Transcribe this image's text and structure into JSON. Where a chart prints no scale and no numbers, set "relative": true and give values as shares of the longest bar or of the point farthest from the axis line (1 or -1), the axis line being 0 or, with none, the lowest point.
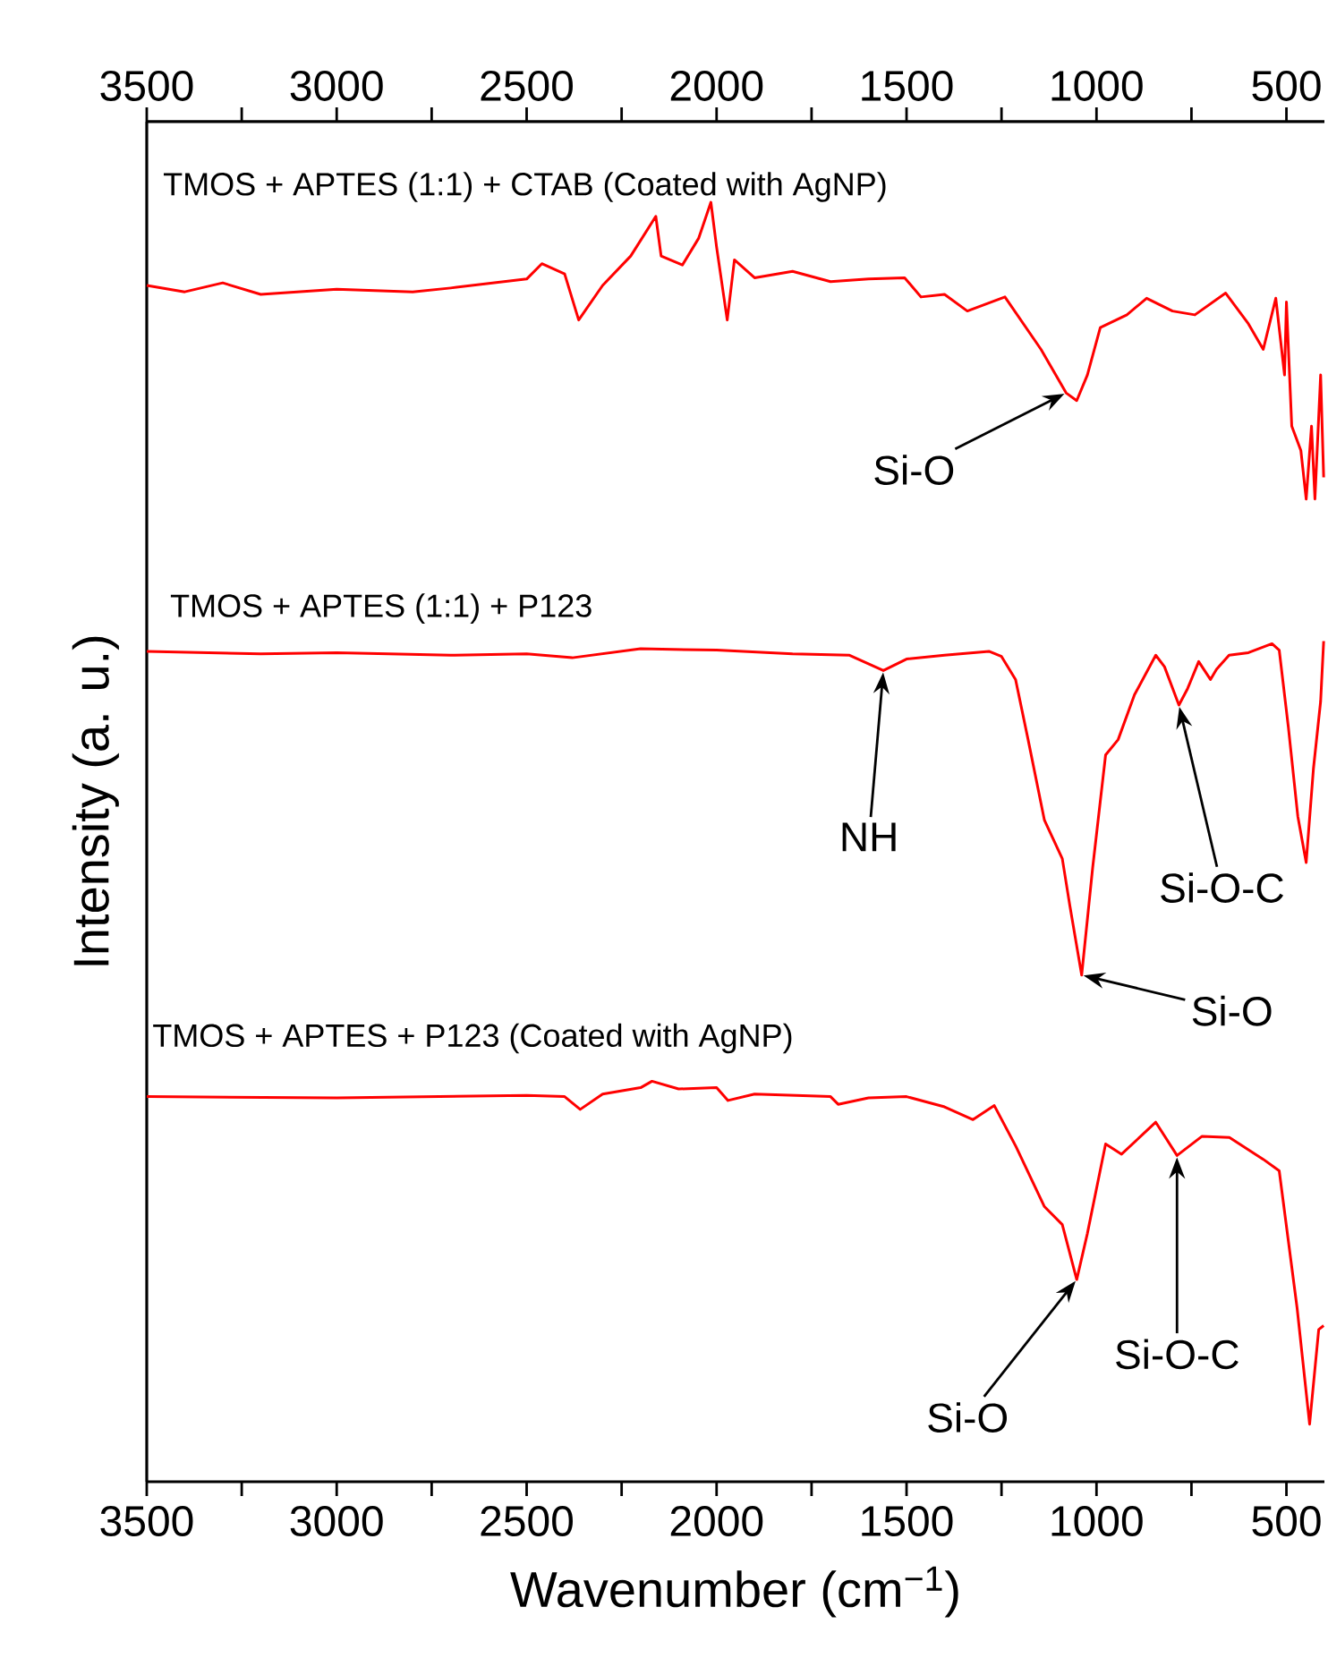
{
  "chart_data": {
    "type": "line",
    "relative": true,
    "xlabel": "Wavenumber (cm$^{−1}$)",
    "ylabel": "Intensity (a. u.)",
    "xlim": [
      3500,
      400
    ],
    "xticks": [
      3500,
      {
        "value": 3250,
        "label": null
      },
      3000,
      {
        "value": 2750,
        "label": null
      },
      2500,
      {
        "value": 2250,
        "label": null
      },
      2000,
      {
        "value": 1750,
        "label": null
      },
      1500,
      {
        "value": 1250,
        "label": null
      },
      1000,
      {
        "value": 750,
        "label": null
      },
      500
    ],
    "x2lim": [
      3500,
      400
    ],
    "x2ticks": [
      3500,
      {
        "value": 3250,
        "label": null
      },
      3000,
      {
        "value": 2750,
        "label": null
      },
      2500,
      {
        "value": 2250,
        "label": null
      },
      2000,
      {
        "value": 1750,
        "label": null
      },
      1500,
      {
        "value": 1250,
        "label": null
      },
      1000,
      {
        "value": 750,
        "label": null
      },
      500
    ],
    "legend": false,
    "grid": false,
    "marker": "none",
    "line_style": "solid",
    "series": [
      {
        "name": "TMOS + APTES (1:1) + CTAB (Coated with AgNP)",
        "color": "#ff0000",
        "x": [
          3500,
          3400,
          3300,
          3200,
          3000,
          2800,
          2700,
          2500,
          2460,
          2400,
          2363,
          2300,
          2226,
          2160,
          2146,
          2090,
          2047,
          2015,
          2000,
          1972,
          1953,
          1900,
          1800,
          1700,
          1600,
          1505,
          1462,
          1400,
          1340,
          1241,
          1146,
          1080,
          1052,
          1024,
          990,
          920,
          868,
          800,
          741,
          660,
          600,
          561,
          528,
          505,
          500,
          486,
          462,
          448,
          434,
          425,
          410,
          402
        ],
        "values": [
          0.935,
          0.93,
          0.937,
          0.928,
          0.932,
          0.93,
          0.933,
          0.94,
          0.952,
          0.944,
          0.908,
          0.935,
          0.958,
          0.989,
          0.958,
          0.951,
          0.972,
          1.0,
          0.965,
          0.908,
          0.955,
          0.941,
          0.946,
          0.938,
          0.94,
          0.941,
          0.926,
          0.928,
          0.915,
          0.926,
          0.885,
          0.851,
          0.845,
          0.865,
          0.902,
          0.912,
          0.925,
          0.915,
          0.912,
          0.929,
          0.905,
          0.885,
          0.925,
          0.865,
          0.922,
          0.825,
          0.806,
          0.768,
          0.825,
          0.768,
          0.865,
          0.785
        ]
      },
      {
        "name": "TMOS + APTES (1:1) + P123",
        "color": "#ff0000",
        "x": [
          3500,
          3200,
          3000,
          2700,
          2500,
          2380,
          2200,
          2000,
          1800,
          1650,
          1561,
          1500,
          1400,
          1283,
          1250,
          1213,
          1180,
          1137,
          1090,
          1070,
          1039,
          1010,
          976,
          943,
          900,
          844,
          821,
          783,
          760,
          731,
          700,
          684,
          651,
          600,
          538,
          519,
          495,
          470,
          448,
          429,
          410,
          402
        ],
        "values": [
          0.649,
          0.647,
          0.648,
          0.646,
          0.647,
          0.644,
          0.651,
          0.65,
          0.647,
          0.646,
          0.634,
          0.643,
          0.646,
          0.649,
          0.645,
          0.627,
          0.58,
          0.517,
          0.487,
          0.45,
          0.396,
          0.48,
          0.568,
          0.58,
          0.615,
          0.646,
          0.637,
          0.607,
          0.62,
          0.641,
          0.627,
          0.635,
          0.646,
          0.648,
          0.655,
          0.65,
          0.59,
          0.52,
          0.484,
          0.557,
          0.61,
          0.657
        ]
      },
      {
        "name": "TMOS + APTES + P123 (Coated with AgNP)",
        "color": "#ff0000",
        "x": [
          3500,
          3000,
          2500,
          2400,
          2359,
          2300,
          2200,
          2170,
          2100,
          2000,
          1970,
          1900,
          1700,
          1680,
          1600,
          1500,
          1400,
          1325,
          1269,
          1212,
          1137,
          1090,
          1052,
          1024,
          976,
          934,
          844,
          788,
          722,
          650,
          561,
          519,
          472,
          439,
          415,
          402
        ],
        "values": [
          0.301,
          0.3,
          0.302,
          0.301,
          0.291,
          0.303,
          0.308,
          0.313,
          0.307,
          0.308,
          0.298,
          0.303,
          0.301,
          0.295,
          0.3,
          0.301,
          0.293,
          0.283,
          0.294,
          0.262,
          0.215,
          0.201,
          0.158,
          0.194,
          0.264,
          0.256,
          0.281,
          0.255,
          0.27,
          0.269,
          0.252,
          0.243,
          0.136,
          0.045,
          0.119,
          0.122
        ]
      }
    ],
    "annotations": [
      {
        "text": "Si-O",
        "x": 1080,
        "y": 0.851
      },
      {
        "text": "NH",
        "x": 1561,
        "y": 0.634
      },
      {
        "text": "Si-O-C",
        "x": 783,
        "y": 0.607
      },
      {
        "text": "Si-O",
        "x": 1039,
        "y": 0.396
      },
      {
        "text": "Si-O",
        "x": 1052,
        "y": 0.158
      },
      {
        "text": "Si-O-C",
        "x": 788,
        "y": 0.255
      }
    ]
  }
}
